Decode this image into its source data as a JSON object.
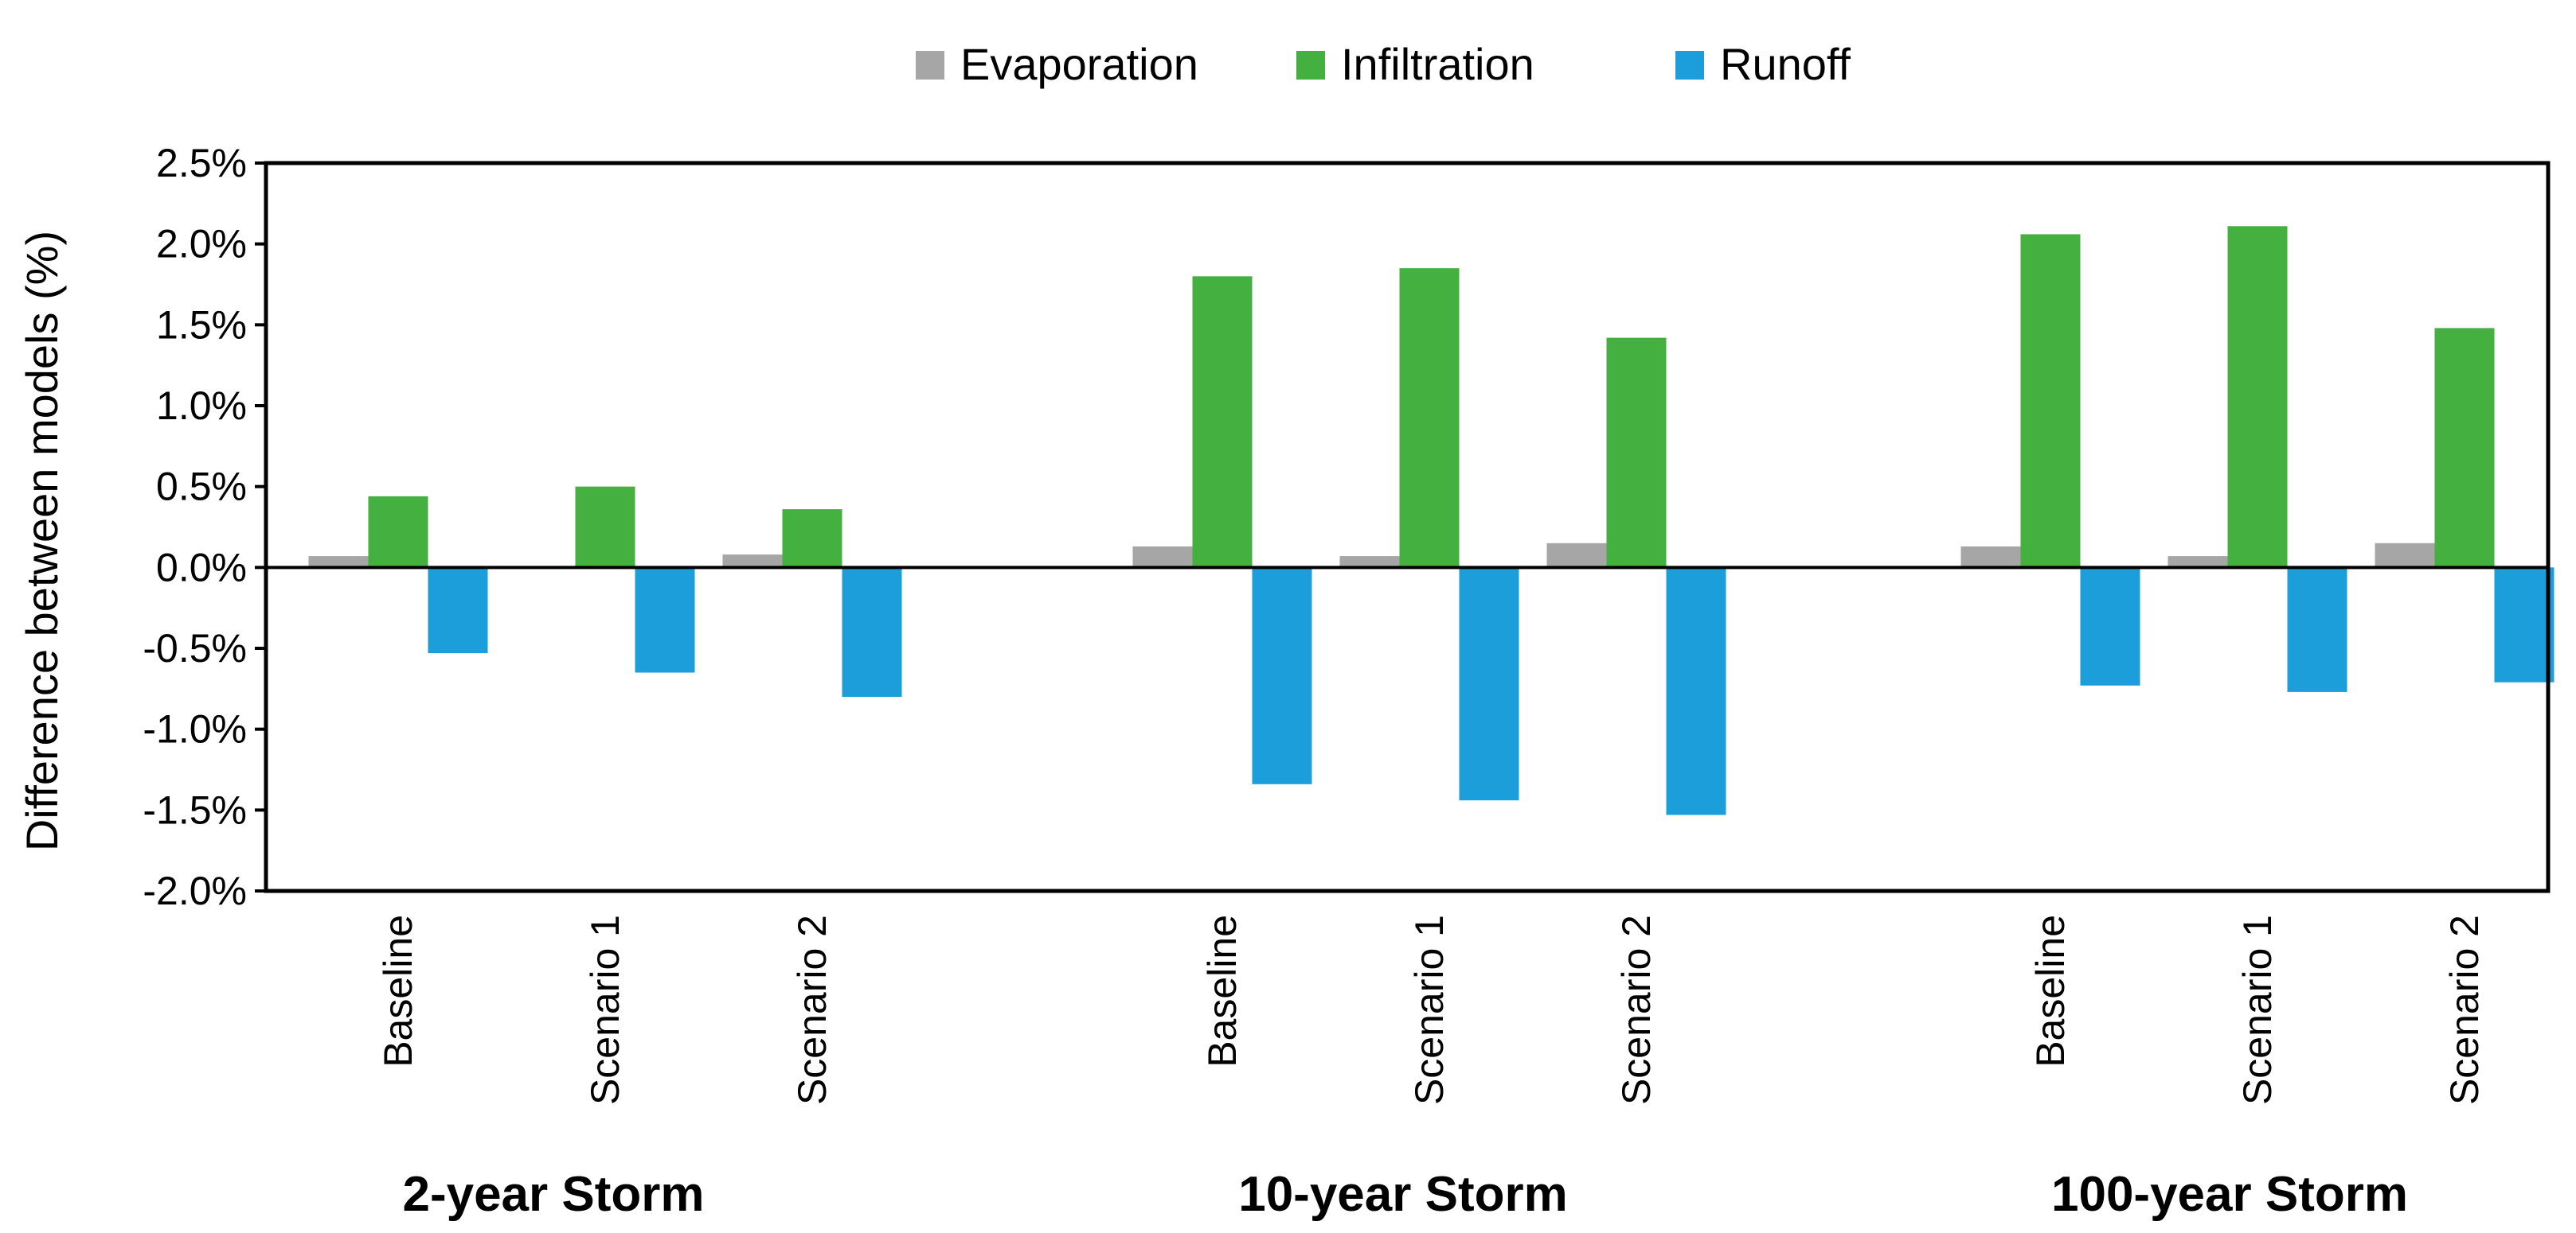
{
  "chart_data": {
    "type": "bar",
    "title": "",
    "xlabel": "",
    "ylabel": "Difference between models (%)",
    "ylim": [
      -2.0,
      2.5
    ],
    "yticks": [
      2.5,
      2.0,
      1.5,
      1.0,
      0.5,
      0.0,
      -0.5,
      -1.0,
      -1.5,
      -2.0
    ],
    "ytick_labels": [
      "2.5%",
      "2.0%",
      "1.5%",
      "1.0%",
      "0.5%",
      "0.0%",
      "-0.5%",
      "-1.0%",
      "-1.5%",
      "-2.0%"
    ],
    "grid": false,
    "legend_position": "top",
    "groups": [
      "2-year Storm",
      "10-year Storm",
      "100-year Storm"
    ],
    "categories": [
      "Baseline",
      "Scenario 1",
      "Scenario 2",
      "Baseline",
      "Scenario 1",
      "Scenario 2",
      "Baseline",
      "Scenario 1",
      "Scenario 2"
    ],
    "series": [
      {
        "name": "Evaporation",
        "color": "#a6a6a6",
        "values": [
          0.07,
          0.0,
          0.08,
          0.13,
          0.07,
          0.15,
          0.13,
          0.07,
          0.15
        ]
      },
      {
        "name": "Infiltration",
        "color": "#43b03f",
        "values": [
          0.44,
          0.5,
          0.36,
          1.8,
          1.85,
          1.42,
          2.06,
          2.11,
          1.48
        ]
      },
      {
        "name": "Runoff",
        "color": "#1b9ed9",
        "values": [
          -0.53,
          -0.65,
          -0.8,
          -1.34,
          -1.44,
          -1.53,
          -0.73,
          -0.77,
          -0.71
        ]
      }
    ]
  }
}
